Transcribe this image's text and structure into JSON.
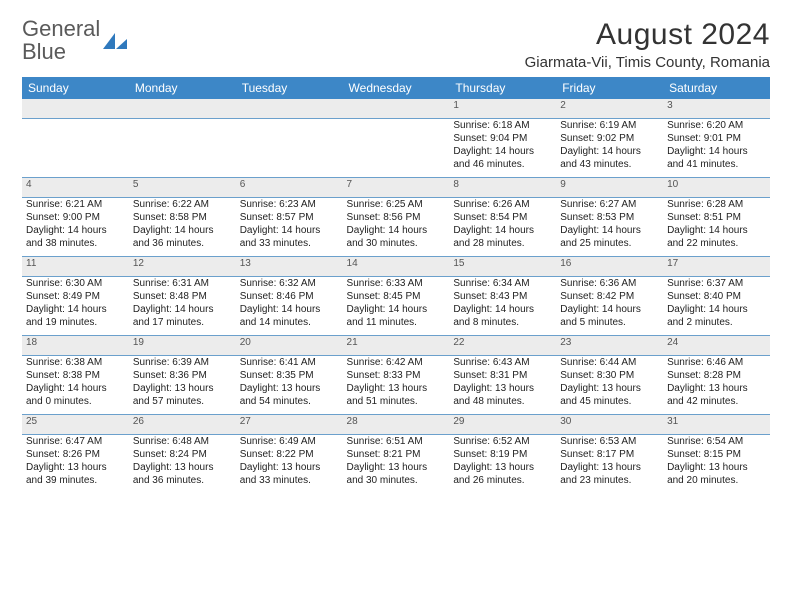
{
  "brand": {
    "name_a": "General",
    "name_b": "Blue"
  },
  "header": {
    "month_title": "August 2024",
    "location": "Giarmata-Vii, Timis County, Romania"
  },
  "day_headers": [
    "Sunday",
    "Monday",
    "Tuesday",
    "Wednesday",
    "Thursday",
    "Friday",
    "Saturday"
  ],
  "colors": {
    "header_bg": "#3d87c7",
    "header_text": "#ffffff",
    "daynum_bg": "#ececec",
    "row_divider": "#6ba0cc",
    "logo_blue": "#2f79bd",
    "text": "#222222"
  },
  "labels": {
    "sunrise": "Sunrise:",
    "sunset": "Sunset:",
    "daylight": "Daylight:"
  },
  "weeks": [
    [
      null,
      null,
      null,
      null,
      {
        "n": "1",
        "sr": "6:18 AM",
        "ss": "9:04 PM",
        "dl": "14 hours and 46 minutes."
      },
      {
        "n": "2",
        "sr": "6:19 AM",
        "ss": "9:02 PM",
        "dl": "14 hours and 43 minutes."
      },
      {
        "n": "3",
        "sr": "6:20 AM",
        "ss": "9:01 PM",
        "dl": "14 hours and 41 minutes."
      }
    ],
    [
      {
        "n": "4",
        "sr": "6:21 AM",
        "ss": "9:00 PM",
        "dl": "14 hours and 38 minutes."
      },
      {
        "n": "5",
        "sr": "6:22 AM",
        "ss": "8:58 PM",
        "dl": "14 hours and 36 minutes."
      },
      {
        "n": "6",
        "sr": "6:23 AM",
        "ss": "8:57 PM",
        "dl": "14 hours and 33 minutes."
      },
      {
        "n": "7",
        "sr": "6:25 AM",
        "ss": "8:56 PM",
        "dl": "14 hours and 30 minutes."
      },
      {
        "n": "8",
        "sr": "6:26 AM",
        "ss": "8:54 PM",
        "dl": "14 hours and 28 minutes."
      },
      {
        "n": "9",
        "sr": "6:27 AM",
        "ss": "8:53 PM",
        "dl": "14 hours and 25 minutes."
      },
      {
        "n": "10",
        "sr": "6:28 AM",
        "ss": "8:51 PM",
        "dl": "14 hours and 22 minutes."
      }
    ],
    [
      {
        "n": "11",
        "sr": "6:30 AM",
        "ss": "8:49 PM",
        "dl": "14 hours and 19 minutes."
      },
      {
        "n": "12",
        "sr": "6:31 AM",
        "ss": "8:48 PM",
        "dl": "14 hours and 17 minutes."
      },
      {
        "n": "13",
        "sr": "6:32 AM",
        "ss": "8:46 PM",
        "dl": "14 hours and 14 minutes."
      },
      {
        "n": "14",
        "sr": "6:33 AM",
        "ss": "8:45 PM",
        "dl": "14 hours and 11 minutes."
      },
      {
        "n": "15",
        "sr": "6:34 AM",
        "ss": "8:43 PM",
        "dl": "14 hours and 8 minutes."
      },
      {
        "n": "16",
        "sr": "6:36 AM",
        "ss": "8:42 PM",
        "dl": "14 hours and 5 minutes."
      },
      {
        "n": "17",
        "sr": "6:37 AM",
        "ss": "8:40 PM",
        "dl": "14 hours and 2 minutes."
      }
    ],
    [
      {
        "n": "18",
        "sr": "6:38 AM",
        "ss": "8:38 PM",
        "dl": "14 hours and 0 minutes."
      },
      {
        "n": "19",
        "sr": "6:39 AM",
        "ss": "8:36 PM",
        "dl": "13 hours and 57 minutes."
      },
      {
        "n": "20",
        "sr": "6:41 AM",
        "ss": "8:35 PM",
        "dl": "13 hours and 54 minutes."
      },
      {
        "n": "21",
        "sr": "6:42 AM",
        "ss": "8:33 PM",
        "dl": "13 hours and 51 minutes."
      },
      {
        "n": "22",
        "sr": "6:43 AM",
        "ss": "8:31 PM",
        "dl": "13 hours and 48 minutes."
      },
      {
        "n": "23",
        "sr": "6:44 AM",
        "ss": "8:30 PM",
        "dl": "13 hours and 45 minutes."
      },
      {
        "n": "24",
        "sr": "6:46 AM",
        "ss": "8:28 PM",
        "dl": "13 hours and 42 minutes."
      }
    ],
    [
      {
        "n": "25",
        "sr": "6:47 AM",
        "ss": "8:26 PM",
        "dl": "13 hours and 39 minutes."
      },
      {
        "n": "26",
        "sr": "6:48 AM",
        "ss": "8:24 PM",
        "dl": "13 hours and 36 minutes."
      },
      {
        "n": "27",
        "sr": "6:49 AM",
        "ss": "8:22 PM",
        "dl": "13 hours and 33 minutes."
      },
      {
        "n": "28",
        "sr": "6:51 AM",
        "ss": "8:21 PM",
        "dl": "13 hours and 30 minutes."
      },
      {
        "n": "29",
        "sr": "6:52 AM",
        "ss": "8:19 PM",
        "dl": "13 hours and 26 minutes."
      },
      {
        "n": "30",
        "sr": "6:53 AM",
        "ss": "8:17 PM",
        "dl": "13 hours and 23 minutes."
      },
      {
        "n": "31",
        "sr": "6:54 AM",
        "ss": "8:15 PM",
        "dl": "13 hours and 20 minutes."
      }
    ]
  ]
}
